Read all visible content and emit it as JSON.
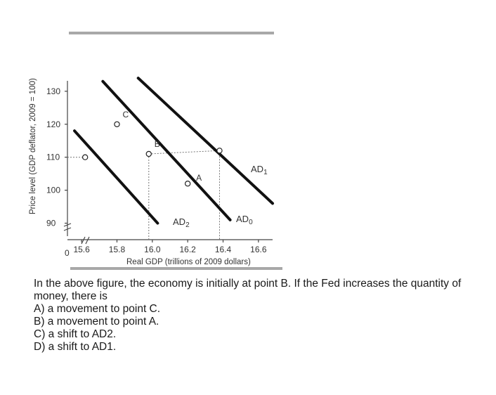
{
  "chart_data": {
    "type": "line",
    "ylabel": "Price level (GDP deflator, 2009 = 100)",
    "xlabel": "Real GDP (trillions of 2009 dollars)",
    "origin_label": "0",
    "x_ticks": [
      "15.6",
      "15.8",
      "16.0",
      "16.2",
      "16.4",
      "16.6"
    ],
    "y_ticks": [
      "90",
      "100",
      "110",
      "120",
      "130"
    ],
    "xlim": [
      15.52,
      16.68
    ],
    "ylim": [
      85,
      137
    ],
    "series": [
      {
        "name": "AD1",
        "label_main": "AD",
        "label_sub": "1",
        "x": [
          15.92,
          16.68
        ],
        "y": [
          134,
          96
        ]
      },
      {
        "name": "AD0",
        "label_main": "AD",
        "label_sub": "0",
        "x": [
          15.72,
          16.44
        ],
        "y": [
          133,
          91
        ]
      },
      {
        "name": "AD2",
        "label_main": "AD",
        "label_sub": "2",
        "x": [
          15.56,
          16.03
        ],
        "y": [
          118,
          90
        ]
      }
    ],
    "points": [
      {
        "label": "C",
        "x": 15.8,
        "y": 120
      },
      {
        "label": "B",
        "x": 15.98,
        "y": 111
      },
      {
        "label": "A",
        "x": 16.2,
        "y": 102
      },
      {
        "label": "",
        "x": 15.62,
        "y": 110
      },
      {
        "label": "",
        "x": 16.38,
        "y": 112
      }
    ],
    "guides": [
      {
        "x": 15.98,
        "y": 111
      },
      {
        "x": 16.38,
        "y": 112
      }
    ]
  },
  "question": {
    "stem": "In the above figure, the economy is initially at point B. If the Fed increases the quantity of money, there is",
    "options": [
      "A) a movement to point C.",
      "B) a movement to point A.",
      "C) a shift to AD2.",
      "D) a shift to AD1."
    ]
  }
}
